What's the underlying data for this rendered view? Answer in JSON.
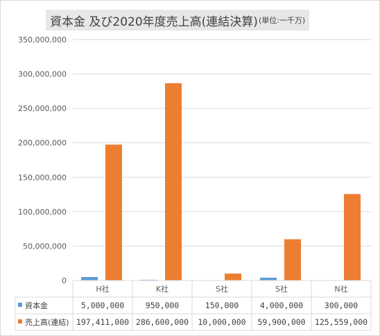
{
  "title": "資本金 及び2020年度売上高(連結決算)",
  "title_unit": "(単位:一千万)",
  "colors": {
    "capital": "#5b9bd5",
    "sales": "#ed7d31",
    "grid": "#d9d9d9",
    "text": "#595959"
  },
  "chart_data": {
    "type": "bar",
    "title": "資本金 及び2020年度売上高(連結決算)(単位:一千万)",
    "categories": [
      "H社",
      "K社",
      "S社",
      "S社",
      "N社"
    ],
    "ylim": [
      0,
      350000000
    ],
    "yticks": [
      "0",
      "50,000,000",
      "100,000,000",
      "150,000,000",
      "200,000,000",
      "250,000,000",
      "300,000,000",
      "350,000,000"
    ],
    "grid": true,
    "legend": "data-table",
    "series": [
      {
        "name": "資本金",
        "values": [
          5000000,
          950000,
          150000,
          4000000,
          300000
        ],
        "labels": [
          "5,000,000",
          "950,000",
          "150,000",
          "4,000,000",
          "300,000"
        ]
      },
      {
        "name": "売上高(連結)",
        "values": [
          197411000,
          286600000,
          10000000,
          59900000,
          125559000
        ],
        "labels": [
          "197,411,000",
          "286,600,000",
          "10,000,000",
          "59,900,000",
          "125,559,000"
        ]
      }
    ]
  }
}
